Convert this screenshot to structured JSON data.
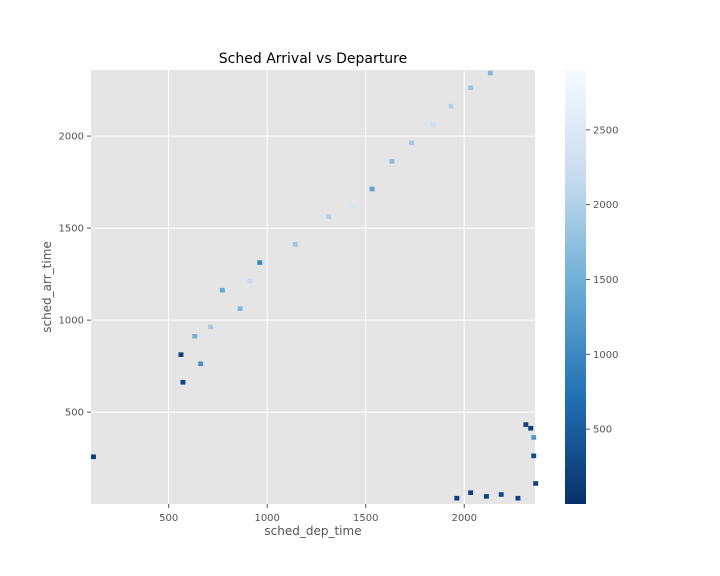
{
  "chart_data": {
    "type": "heatmap",
    "title": "Sched Arrival vs Departure",
    "xlabel": "sched_dep_time",
    "ylabel": "sched_arr_time",
    "xlim": [
      106,
      2359
    ],
    "ylim": [
      1,
      2359
    ],
    "xticks": [
      500,
      1000,
      1500,
      2000
    ],
    "yticks": [
      500,
      1000,
      1500,
      2000
    ],
    "colorbar": {
      "colormap": "Blues_r",
      "range": [
        0,
        2900
      ],
      "ticks": [
        500,
        1000,
        1500,
        2000,
        2500
      ]
    },
    "grid": true,
    "background_color": "#e5e5e5",
    "bin_size": 25,
    "cells": [
      {
        "x": 106,
        "y": 245,
        "value": 150
      },
      {
        "x": 2300,
        "y": 420,
        "value": 200
      },
      {
        "x": 2325,
        "y": 400,
        "value": 150
      },
      {
        "x": 2340,
        "y": 350,
        "value": 1200
      },
      {
        "x": 2340,
        "y": 250,
        "value": 300
      },
      {
        "x": 2350,
        "y": 100,
        "value": 200
      },
      {
        "x": 1950,
        "y": 20,
        "value": 150
      },
      {
        "x": 2020,
        "y": 50,
        "value": 150
      },
      {
        "x": 2100,
        "y": 30,
        "value": 200
      },
      {
        "x": 2175,
        "y": 40,
        "value": 300
      },
      {
        "x": 2260,
        "y": 20,
        "value": 200
      },
      {
        "x": 550,
        "y": 800,
        "value": 150
      },
      {
        "x": 560,
        "y": 650,
        "value": 250
      },
      {
        "x": 650,
        "y": 750,
        "value": 1100
      },
      {
        "x": 620,
        "y": 900,
        "value": 1500
      },
      {
        "x": 700,
        "y": 950,
        "value": 1900
      },
      {
        "x": 760,
        "y": 1150,
        "value": 1400
      },
      {
        "x": 850,
        "y": 1050,
        "value": 1600
      },
      {
        "x": 900,
        "y": 1200,
        "value": 2200
      },
      {
        "x": 950,
        "y": 1300,
        "value": 1000
      },
      {
        "x": 1130,
        "y": 1400,
        "value": 1800
      },
      {
        "x": 1300,
        "y": 1550,
        "value": 2000
      },
      {
        "x": 1420,
        "y": 1600,
        "value": 2400
      },
      {
        "x": 1520,
        "y": 1700,
        "value": 1300
      },
      {
        "x": 1620,
        "y": 1850,
        "value": 1700
      },
      {
        "x": 1720,
        "y": 1950,
        "value": 1900
      },
      {
        "x": 1830,
        "y": 2050,
        "value": 2300
      },
      {
        "x": 1920,
        "y": 2150,
        "value": 2000
      },
      {
        "x": 2020,
        "y": 2250,
        "value": 1800
      },
      {
        "x": 2120,
        "y": 2330,
        "value": 1600
      }
    ]
  }
}
